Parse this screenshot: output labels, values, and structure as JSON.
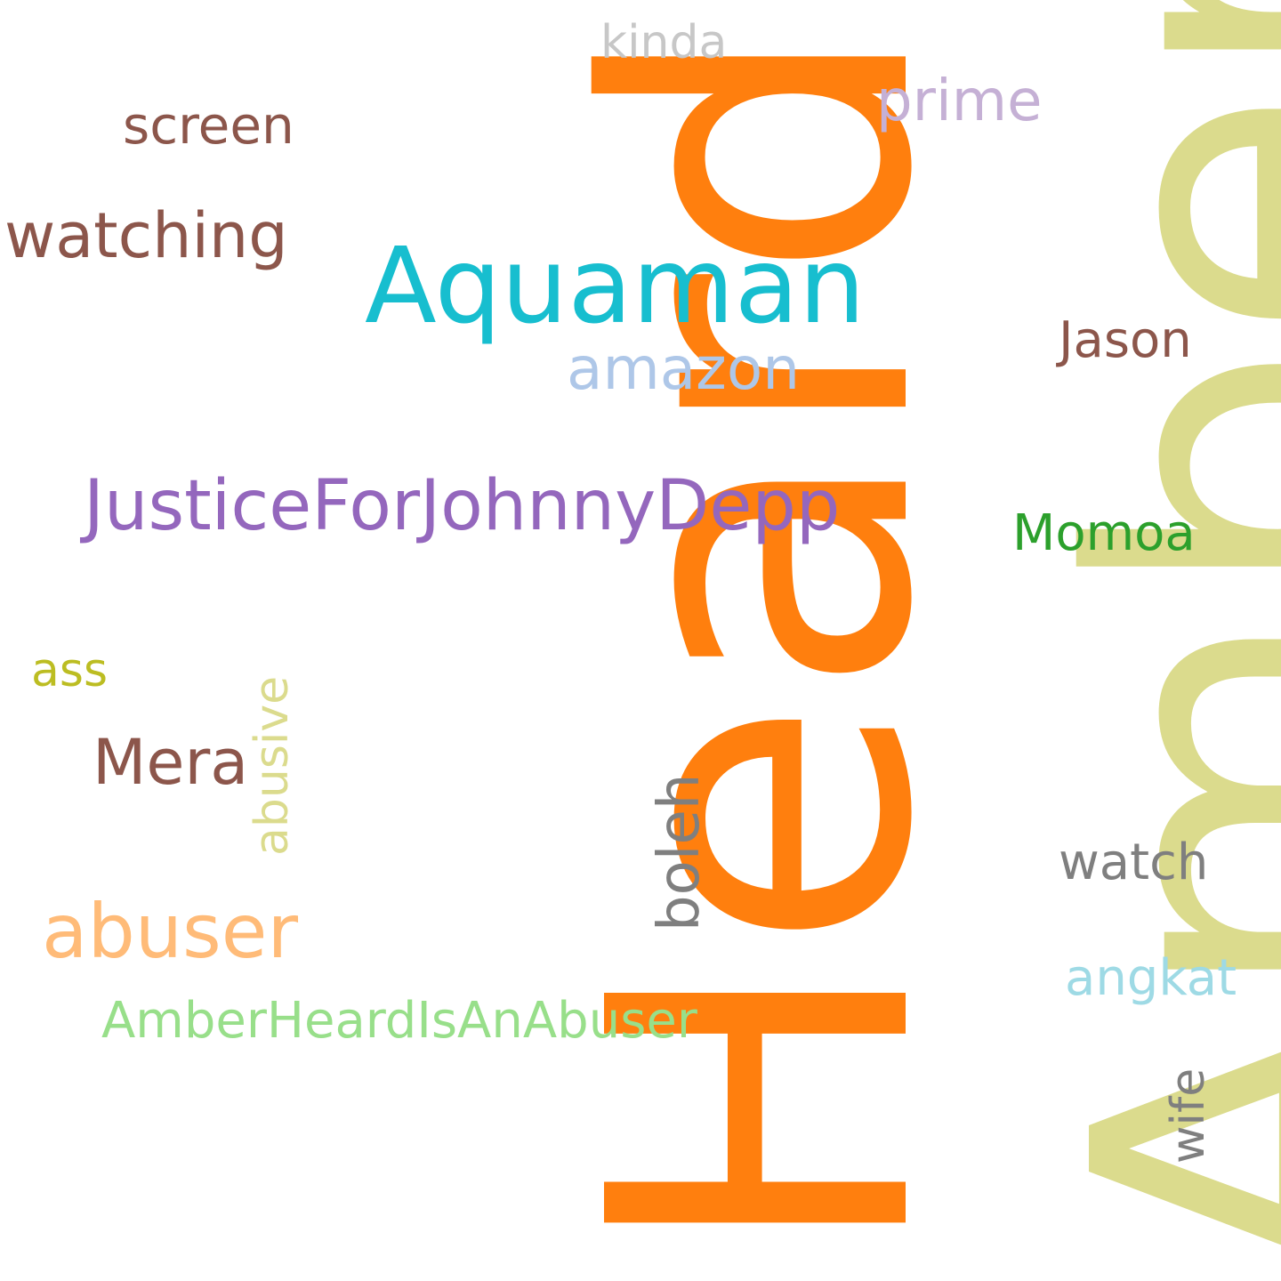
{
  "words": {
    "heard": {
      "text": "Heard",
      "color": "#ff7f0e",
      "orientation": "vertical"
    },
    "amber": {
      "text": "Amber",
      "color": "#dbdb8d",
      "orientation": "vertical"
    },
    "aquaman": {
      "text": "Aquaman",
      "color": "#17becf",
      "orientation": "horizontal"
    },
    "justice": {
      "text": "JusticeForJohnnyDepp",
      "color": "#9467bd",
      "orientation": "horizontal"
    },
    "watching": {
      "text": "watching",
      "color": "#8c564b",
      "orientation": "horizontal"
    },
    "screen": {
      "text": "screen",
      "color": "#8c564b",
      "orientation": "horizontal"
    },
    "kinda": {
      "text": "kinda",
      "color": "#c7c7c7",
      "orientation": "horizontal"
    },
    "prime": {
      "text": "prime",
      "color": "#c5b0d5",
      "orientation": "horizontal"
    },
    "amazon": {
      "text": "amazon",
      "color": "#aec7e8",
      "orientation": "horizontal"
    },
    "jason": {
      "text": "Jason",
      "color": "#8c564b",
      "orientation": "horizontal"
    },
    "momoa": {
      "text": "Momoa",
      "color": "#2ca02c",
      "orientation": "horizontal"
    },
    "ass": {
      "text": "ass",
      "color": "#bcbd22",
      "orientation": "horizontal"
    },
    "mera": {
      "text": "Mera",
      "color": "#8c564b",
      "orientation": "horizontal"
    },
    "abusive": {
      "text": "abusive",
      "color": "#dbdb8d",
      "orientation": "vertical"
    },
    "boleh": {
      "text": "boleh",
      "color": "#7f7f7f",
      "orientation": "vertical"
    },
    "abuser": {
      "text": "abuser",
      "color": "#ffbb78",
      "orientation": "horizontal"
    },
    "ahiaa": {
      "text": "AmberHeardIsAnAbuser",
      "color": "#98df8a",
      "orientation": "horizontal"
    },
    "watch": {
      "text": "watch",
      "color": "#7f7f7f",
      "orientation": "horizontal"
    },
    "angkat": {
      "text": "angkat",
      "color": "#9edae5",
      "orientation": "horizontal"
    },
    "wife": {
      "text": "wife",
      "color": "#7f7f7f",
      "orientation": "vertical"
    }
  }
}
